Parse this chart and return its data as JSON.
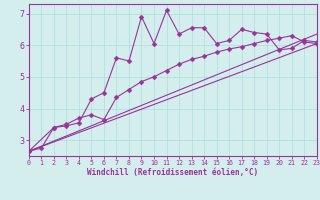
{
  "xlabel": "Windchill (Refroidissement éolien,°C)",
  "bg_color": "#d4eeee",
  "line_color": "#993399",
  "grid_color": "#aadddd",
  "xlim": [
    0,
    23
  ],
  "ylim": [
    2.5,
    7.3
  ],
  "xticks": [
    0,
    1,
    2,
    3,
    4,
    5,
    6,
    7,
    8,
    9,
    10,
    11,
    12,
    13,
    14,
    15,
    16,
    17,
    18,
    19,
    20,
    21,
    22,
    23
  ],
  "yticks": [
    3,
    4,
    5,
    6,
    7
  ],
  "series1_x": [
    0,
    1,
    2,
    3,
    4,
    5,
    6,
    7,
    8,
    9,
    10,
    11,
    12,
    13,
    14,
    15,
    16,
    17,
    18,
    19,
    20,
    21,
    22,
    23
  ],
  "series1_y": [
    2.65,
    2.75,
    3.4,
    3.45,
    3.55,
    4.3,
    4.5,
    5.6,
    5.5,
    6.9,
    6.05,
    7.1,
    6.35,
    6.55,
    6.55,
    6.05,
    6.15,
    6.5,
    6.4,
    6.35,
    5.85,
    5.9,
    6.15,
    6.1
  ],
  "series2_x": [
    0,
    2,
    3,
    4,
    5,
    6,
    7,
    8,
    9,
    10,
    11,
    12,
    13,
    14,
    15,
    16,
    17,
    18,
    19,
    20,
    21,
    22,
    23
  ],
  "series2_y": [
    2.65,
    3.4,
    3.5,
    3.7,
    3.8,
    3.65,
    4.35,
    4.6,
    4.85,
    5.0,
    5.2,
    5.4,
    5.55,
    5.65,
    5.78,
    5.88,
    5.95,
    6.05,
    6.15,
    6.22,
    6.3,
    6.1,
    6.05
  ],
  "series3_x": [
    0,
    23
  ],
  "series3_y": [
    2.65,
    6.35
  ],
  "series4_x": [
    0,
    23
  ],
  "series4_y": [
    2.65,
    6.05
  ]
}
